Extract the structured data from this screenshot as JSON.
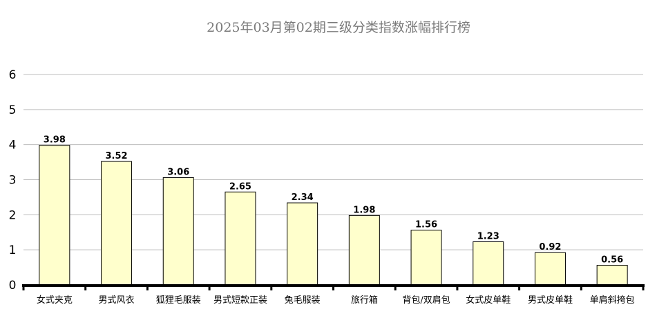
{
  "chart_data": {
    "type": "bar",
    "title": "2025年03月第02期三级分类指数涨幅排行榜",
    "categories": [
      "女式夹克",
      "男式风衣",
      "狐狸毛服装",
      "男式短款正装",
      "兔毛服装",
      "旅行箱",
      "背包/双肩包",
      "女式皮单鞋",
      "男式皮单鞋",
      "单肩斜挎包"
    ],
    "values": [
      3.98,
      3.52,
      3.06,
      2.65,
      2.34,
      1.98,
      1.56,
      1.23,
      0.92,
      0.56
    ],
    "value_labels": [
      "3.98",
      "3.52",
      "3.06",
      "2.65",
      "2.34",
      "1.98",
      "1.56",
      "1.23",
      "0.92",
      "0.56"
    ],
    "xlabel": "",
    "ylabel": "",
    "ylim": [
      0,
      6
    ],
    "yticks": [
      "0",
      "1",
      "2",
      "3",
      "4",
      "5",
      "6"
    ],
    "grid": true,
    "legend": "none",
    "colors": {
      "bar_fill": "#ffffcc",
      "bar_stroke": "#000000",
      "grid": "#bdbdbd",
      "title": "#7a7a7a"
    }
  }
}
